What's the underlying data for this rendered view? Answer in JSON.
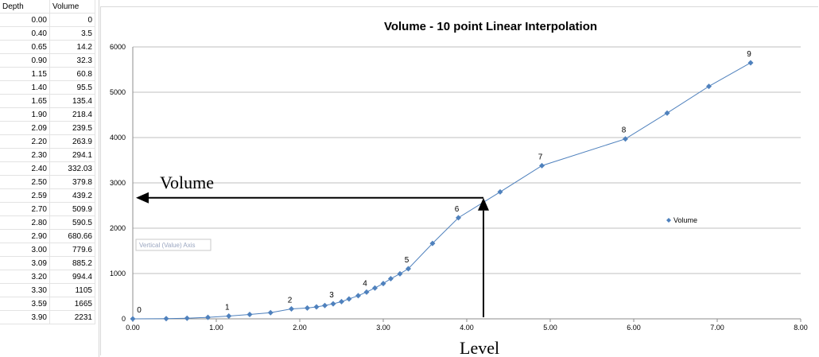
{
  "sheet": {
    "headers": [
      "Depth",
      "Volume"
    ],
    "rows": [
      [
        "0.00",
        "0"
      ],
      [
        "0.40",
        "3.5"
      ],
      [
        "0.65",
        "14.2"
      ],
      [
        "0.90",
        "32.3"
      ],
      [
        "1.15",
        "60.8"
      ],
      [
        "1.40",
        "95.5"
      ],
      [
        "1.65",
        "135.4"
      ],
      [
        "1.90",
        "218.4"
      ],
      [
        "2.09",
        "239.5"
      ],
      [
        "2.20",
        "263.9"
      ],
      [
        "2.30",
        "294.1"
      ],
      [
        "2.40",
        "332.03"
      ],
      [
        "2.50",
        "379.8"
      ],
      [
        "2.59",
        "439.2"
      ],
      [
        "2.70",
        "509.9"
      ],
      [
        "2.80",
        "590.5"
      ],
      [
        "2.90",
        "680.66"
      ],
      [
        "3.00",
        "779.6"
      ],
      [
        "3.09",
        "885.2"
      ],
      [
        "3.20",
        "994.4"
      ],
      [
        "3.30",
        "1105"
      ],
      [
        "3.59",
        "1665"
      ],
      [
        "3.90",
        "2231"
      ]
    ]
  },
  "chart_data": {
    "type": "scatter",
    "title": "Volume - 10 point Linear Interpolation",
    "xlim": [
      0,
      8
    ],
    "ylim": [
      0,
      6000
    ],
    "x_ticks": [
      "0.00",
      "1.00",
      "2.00",
      "3.00",
      "4.00",
      "5.00",
      "6.00",
      "7.00",
      "8.00"
    ],
    "y_ticks": [
      "0",
      "1000",
      "2000",
      "3000",
      "4000",
      "5000",
      "6000"
    ],
    "grid": true,
    "legend_position": "right",
    "series": [
      {
        "name": "Volume",
        "color": "#4f81bd",
        "x": [
          0.0,
          0.4,
          0.65,
          0.9,
          1.15,
          1.4,
          1.65,
          1.9,
          2.09,
          2.2,
          2.3,
          2.4,
          2.5,
          2.59,
          2.7,
          2.8,
          2.9,
          3.0,
          3.09,
          3.2,
          3.3,
          3.59,
          3.9,
          4.4,
          4.9,
          5.9,
          6.4,
          6.9,
          7.4
        ],
        "y": [
          0,
          3.5,
          14.2,
          32.3,
          60.8,
          95.5,
          135.4,
          218.4,
          239.5,
          263.9,
          294.1,
          332.03,
          379.8,
          439.2,
          509.9,
          590.5,
          680.66,
          779.6,
          885.2,
          994.4,
          1105,
          1665,
          2231,
          2800,
          3380,
          3970,
          4540,
          5130,
          5650
        ]
      }
    ],
    "point_labels": [
      {
        "text": "0",
        "x": 0.0,
        "y": 0
      },
      {
        "text": "1",
        "x": 1.15,
        "y": 60.8
      },
      {
        "text": "2",
        "x": 1.9,
        "y": 218.4
      },
      {
        "text": "3",
        "x": 2.4,
        "y": 332.03
      },
      {
        "text": "4",
        "x": 2.8,
        "y": 590.5
      },
      {
        "text": "5",
        "x": 3.3,
        "y": 1105
      },
      {
        "text": "6",
        "x": 3.9,
        "y": 2231
      },
      {
        "text": "7",
        "x": 4.9,
        "y": 3380
      },
      {
        "text": "8",
        "x": 5.9,
        "y": 3970
      },
      {
        "text": "9",
        "x": 7.4,
        "y": 5650
      }
    ],
    "annotations": {
      "volume_label": "Volume",
      "level_label": "Level",
      "level_x": 4.2,
      "level_y": 2600
    },
    "axis_tooltip": "Vertical (Value) Axis"
  }
}
